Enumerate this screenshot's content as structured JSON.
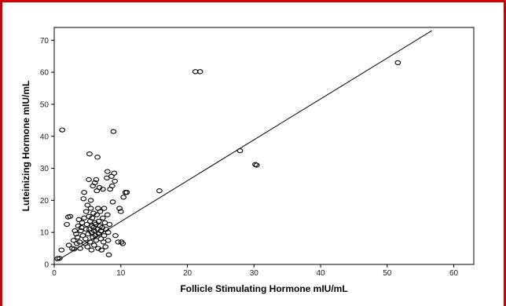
{
  "colors": {
    "frame": "#d40000",
    "axis": "#000000",
    "marker": "#000000",
    "background": "#ffffff"
  },
  "chart_data": {
    "type": "scatter",
    "title": "",
    "xlabel": "Follicle Stimulating Hormone mIU/mL",
    "ylabel": "Luteinizing Hormone mIU/mL",
    "xlim": [
      0,
      63
    ],
    "ylim": [
      0,
      74
    ],
    "xticks": [
      0,
      10,
      20,
      30,
      40,
      50,
      60
    ],
    "yticks": [
      0,
      10,
      20,
      30,
      40,
      50,
      60,
      70
    ],
    "xtick_labels": [
      "0",
      "10",
      "20",
      "30",
      "40",
      "50",
      "60"
    ],
    "ytick_labels": [
      "0",
      "10",
      "20",
      "30",
      "40",
      "50",
      "60",
      "70"
    ],
    "grid": false,
    "legend": "none",
    "marker": "open-circle",
    "fit_line": {
      "x": [
        0.3,
        56.7
      ],
      "y": [
        1.0,
        73.0
      ]
    },
    "points": [
      [
        0.5,
        1.8
      ],
      [
        0.8,
        1.9
      ],
      [
        1.1,
        4.5
      ],
      [
        1.2,
        42.0
      ],
      [
        1.9,
        12.5
      ],
      [
        2.1,
        14.8
      ],
      [
        2.4,
        15.0
      ],
      [
        2.2,
        6.0
      ],
      [
        2.7,
        5.0
      ],
      [
        2.9,
        7.5
      ],
      [
        3.0,
        4.8
      ],
      [
        3.1,
        10.5
      ],
      [
        3.3,
        9.5
      ],
      [
        3.4,
        6.5
      ],
      [
        3.5,
        8.5
      ],
      [
        3.6,
        12.0
      ],
      [
        3.7,
        14.0
      ],
      [
        3.8,
        7.0
      ],
      [
        3.9,
        5.0
      ],
      [
        4.0,
        10.5
      ],
      [
        4.1,
        11.5
      ],
      [
        4.2,
        13.0
      ],
      [
        4.3,
        9.0
      ],
      [
        4.4,
        20.5
      ],
      [
        4.5,
        14.5
      ],
      [
        4.5,
        22.5
      ],
      [
        4.6,
        6.5
      ],
      [
        4.7,
        8.0
      ],
      [
        4.8,
        11.0
      ],
      [
        4.8,
        16.5
      ],
      [
        4.9,
        12.5
      ],
      [
        5.0,
        5.5
      ],
      [
        5.0,
        18.5
      ],
      [
        5.1,
        9.5
      ],
      [
        5.2,
        26.5
      ],
      [
        5.2,
        15.0
      ],
      [
        5.3,
        34.5
      ],
      [
        5.3,
        11.0
      ],
      [
        5.4,
        13.5
      ],
      [
        5.4,
        7.0
      ],
      [
        5.5,
        17.5
      ],
      [
        5.5,
        20.0
      ],
      [
        5.6,
        10.0
      ],
      [
        5.6,
        4.5
      ],
      [
        5.7,
        12.0
      ],
      [
        5.7,
        14.5
      ],
      [
        5.8,
        8.5
      ],
      [
        5.8,
        24.5
      ],
      [
        5.9,
        11.5
      ],
      [
        5.9,
        16.0
      ],
      [
        6.0,
        6.0
      ],
      [
        6.0,
        10.5
      ],
      [
        6.1,
        13.0
      ],
      [
        6.1,
        25.5
      ],
      [
        6.2,
        9.0
      ],
      [
        6.2,
        12.5
      ],
      [
        6.3,
        26.5
      ],
      [
        6.3,
        7.5
      ],
      [
        6.4,
        23.0
      ],
      [
        6.4,
        15.5
      ],
      [
        6.5,
        11.0
      ],
      [
        6.5,
        33.5
      ],
      [
        6.6,
        17.5
      ],
      [
        6.6,
        5.0
      ],
      [
        6.7,
        9.5
      ],
      [
        6.7,
        13.5
      ],
      [
        6.8,
        24.0
      ],
      [
        6.9,
        12.0
      ],
      [
        6.9,
        16.5
      ],
      [
        7.0,
        8.0
      ],
      [
        7.0,
        10.5
      ],
      [
        7.1,
        4.5
      ],
      [
        7.2,
        11.5
      ],
      [
        7.3,
        23.5
      ],
      [
        7.3,
        14.5
      ],
      [
        7.4,
        7.0
      ],
      [
        7.5,
        9.0
      ],
      [
        7.5,
        17.5
      ],
      [
        7.6,
        13.0
      ],
      [
        7.7,
        5.5
      ],
      [
        7.8,
        11.0
      ],
      [
        7.9,
        27.0
      ],
      [
        8.0,
        29.0
      ],
      [
        8.0,
        15.5
      ],
      [
        8.1,
        10.0
      ],
      [
        8.1,
        7.5
      ],
      [
        8.2,
        3.0
      ],
      [
        8.3,
        12.5
      ],
      [
        8.4,
        23.5
      ],
      [
        8.6,
        27.5
      ],
      [
        8.7,
        24.5
      ],
      [
        8.8,
        19.5
      ],
      [
        8.9,
        41.5
      ],
      [
        9.0,
        28.5
      ],
      [
        9.1,
        26.0
      ],
      [
        9.2,
        9.0
      ],
      [
        9.6,
        7.0
      ],
      [
        9.8,
        17.5
      ],
      [
        10.0,
        16.5
      ],
      [
        10.1,
        7.0
      ],
      [
        10.3,
        6.5
      ],
      [
        10.4,
        21.0
      ],
      [
        10.7,
        22.5
      ],
      [
        10.9,
        22.5
      ],
      [
        15.8,
        23.0
      ],
      [
        21.2,
        60.2
      ],
      [
        21.9,
        60.2
      ],
      [
        27.9,
        35.5
      ],
      [
        30.2,
        31.2
      ],
      [
        30.4,
        31.0
      ],
      [
        51.6,
        63.0
      ]
    ]
  }
}
